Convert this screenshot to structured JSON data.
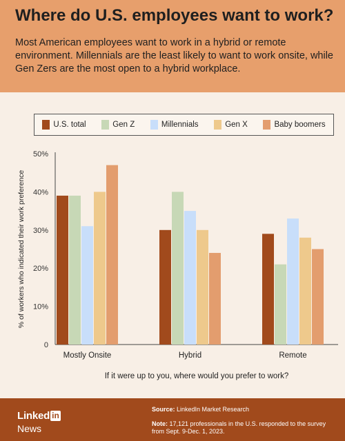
{
  "header": {
    "title": "Where do U.S. employees want to work?",
    "subtitle": "Most American employees want to work in a hybrid or remote environment. Millennials are the least likely to want to work onsite, while Gen Zers are the most open to a hybrid workplace."
  },
  "footer": {
    "brand_name": "Linked",
    "brand_in": "in",
    "brand_news": "News",
    "source_label": "Source:",
    "source_text": " LinkedIn Market Research",
    "note_label": "Note:",
    "note_text": " 17,121 professionals in the U.S. responded to the survey from Sept. 9-Dec. 1, 2023."
  },
  "chart_data": {
    "type": "bar",
    "categories": [
      "Mostly Onsite",
      "Hybrid",
      "Remote"
    ],
    "series": [
      {
        "name": "U.S. total",
        "color": "#a14a1c",
        "values": [
          39,
          30,
          29
        ]
      },
      {
        "name": "Gen Z",
        "color": "#c7d8b6",
        "values": [
          39,
          40,
          21
        ]
      },
      {
        "name": "Millennials",
        "color": "#c8defa",
        "values": [
          31,
          35,
          33
        ]
      },
      {
        "name": "Gen X",
        "color": "#eec98c",
        "values": [
          40,
          30,
          28
        ]
      },
      {
        "name": "Baby boomers",
        "color": "#e39d6e",
        "values": [
          47,
          24,
          25
        ]
      }
    ],
    "yticks": [
      "0",
      "10%",
      "20%",
      "30%",
      "40%",
      "50%"
    ],
    "ylim": [
      0,
      50
    ],
    "ylabel": "% of workers who indicated their work preference",
    "xlabel": "If it were up to you, where would you prefer to work?",
    "legend_position": "top"
  }
}
